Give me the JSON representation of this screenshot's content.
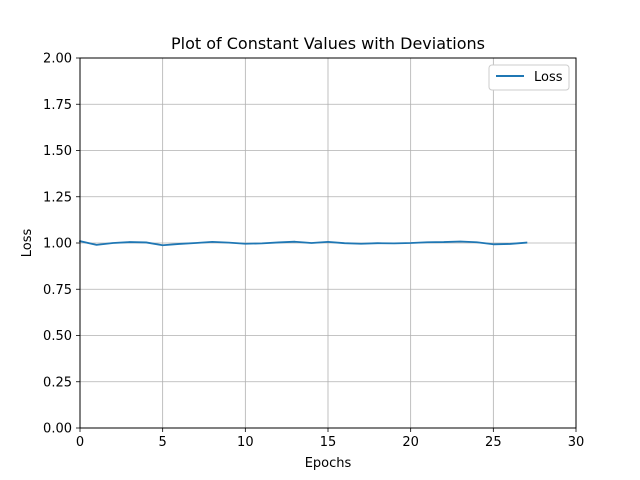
{
  "chart_data": {
    "type": "line",
    "title": "Plot of Constant Values with Deviations",
    "xlabel": "Epochs",
    "ylabel": "Loss",
    "xlim": [
      0,
      30
    ],
    "ylim": [
      0,
      2.0
    ],
    "xticks": [
      0,
      5,
      10,
      15,
      20,
      25,
      30
    ],
    "yticks": [
      0,
      0.25,
      0.5,
      0.75,
      1.0,
      1.25,
      1.5,
      1.75,
      2.0
    ],
    "xtick_labels": [
      "0",
      "5",
      "10",
      "15",
      "20",
      "25",
      "30"
    ],
    "ytick_labels": [
      "0.00",
      "0.25",
      "0.50",
      "0.75",
      "1.00",
      "1.25",
      "1.50",
      "1.75",
      "2.00"
    ],
    "grid": true,
    "legend_position": "top-right",
    "series": [
      {
        "name": "Loss",
        "color": "#1f77b4",
        "x": [
          0,
          1,
          2,
          3,
          4,
          5,
          6,
          7,
          8,
          9,
          10,
          11,
          12,
          13,
          14,
          15,
          16,
          17,
          18,
          19,
          20,
          21,
          22,
          23,
          24,
          25,
          26,
          27
        ],
        "y": [
          1.01,
          0.99,
          1.0,
          1.005,
          1.003,
          0.988,
          0.995,
          1.0,
          1.006,
          1.002,
          0.996,
          0.998,
          1.003,
          1.007,
          1.0,
          1.006,
          0.999,
          0.996,
          0.999,
          0.998,
          1.0,
          1.004,
          1.005,
          1.008,
          1.004,
          0.993,
          0.995,
          1.002
        ]
      }
    ]
  }
}
